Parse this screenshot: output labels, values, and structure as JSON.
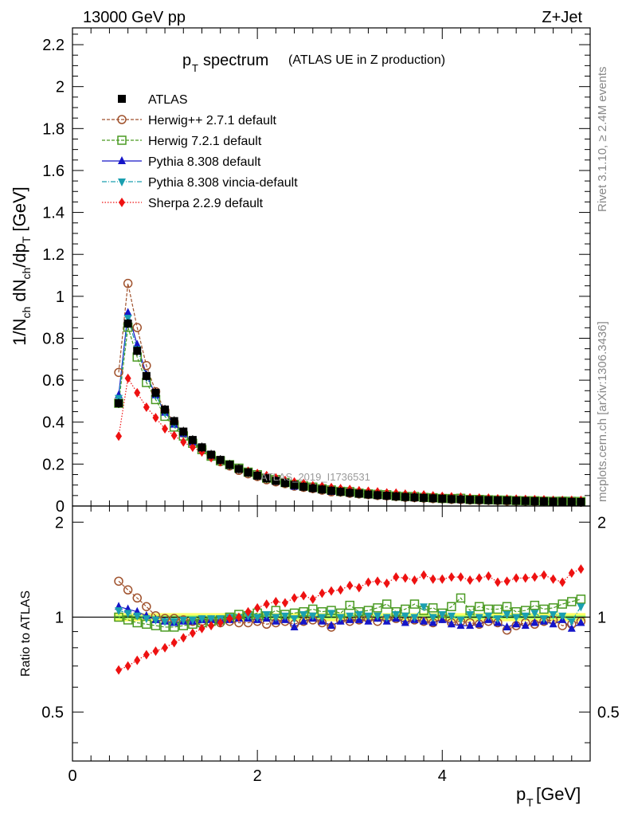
{
  "header": {
    "left": "13000 GeV pp",
    "right": "Z+Jet"
  },
  "side": {
    "rivet": "Rivet 3.1.10, ≥ 2.4M events",
    "mcplots": "mcplots.cern.ch [arXiv:1306.3436]"
  },
  "watermark": "ATLAS_2019_I1736531",
  "chart_data": {
    "type": "scatter",
    "title": {
      "main": "p",
      "sub": "T",
      "tail": " spectrum",
      "note": "(ATLAS UE in Z production)"
    },
    "ylabel": "1/N_ch dN_ch/dp_T [GeV]",
    "ratio_ylabel": "Ratio to ATLAS",
    "xlabel": {
      "main": "p",
      "sub": "T",
      "tail": " [GeV]"
    },
    "xlim": [
      0,
      5.6
    ],
    "ylim": [
      0,
      2.28
    ],
    "ratio_ylim": [
      0.35,
      2.25
    ],
    "ratio_log": true,
    "xticks": [
      "0",
      "2",
      "4"
    ],
    "yticks": [
      "0",
      "0.2",
      "0.4",
      "0.6",
      "0.8",
      "1",
      "1.2",
      "1.4",
      "1.6",
      "1.8",
      "2",
      "2.2"
    ],
    "ratio_yticks": [
      "0.5",
      "1",
      "2"
    ],
    "legend_position": "top-left",
    "x": [
      0.5,
      0.6,
      0.7,
      0.8,
      0.9,
      1.0,
      1.1,
      1.2,
      1.3,
      1.4,
      1.5,
      1.6,
      1.7,
      1.8,
      1.9,
      2.0,
      2.1,
      2.2,
      2.3,
      2.4,
      2.5,
      2.6,
      2.7,
      2.8,
      2.9,
      3.0,
      3.1,
      3.2,
      3.3,
      3.4,
      3.5,
      3.6,
      3.7,
      3.8,
      3.9,
      4.0,
      4.1,
      4.2,
      4.3,
      4.4,
      4.5,
      4.6,
      4.7,
      4.8,
      4.9,
      5.0,
      5.1,
      5.2,
      5.3,
      5.4,
      5.5
    ],
    "data": {
      "name": "ATLAS",
      "values": [
        0.49,
        0.87,
        0.74,
        0.62,
        0.54,
        0.46,
        0.405,
        0.355,
        0.315,
        0.28,
        0.245,
        0.22,
        0.197,
        0.177,
        0.16,
        0.145,
        0.132,
        0.12,
        0.11,
        0.1,
        0.092,
        0.085,
        0.079,
        0.073,
        0.068,
        0.063,
        0.059,
        0.055,
        0.052,
        0.049,
        0.046,
        0.043,
        0.041,
        0.039,
        0.037,
        0.035,
        0.033,
        0.032,
        0.03,
        0.029,
        0.028,
        0.027,
        0.026,
        0.025,
        0.024,
        0.023,
        0.022,
        0.021,
        0.021,
        0.02,
        0.019
      ]
    },
    "series": [
      {
        "name": "Herwig++ 2.7.1 default",
        "color": "#a0522d",
        "marker": "circle-open",
        "dash": "4,2",
        "ratio": [
          1.3,
          1.22,
          1.15,
          1.08,
          1.01,
          0.99,
          0.99,
          0.98,
          0.97,
          0.97,
          0.96,
          0.96,
          0.97,
          0.96,
          0.96,
          0.97,
          0.95,
          0.96,
          0.97,
          0.95,
          0.97,
          0.98,
          0.96,
          0.93,
          0.98,
          0.97,
          0.98,
          0.99,
          0.97,
          0.99,
          0.99,
          0.97,
          0.98,
          0.97,
          0.96,
          0.99,
          0.96,
          0.97,
          0.96,
          0.95,
          0.97,
          0.96,
          0.91,
          0.94,
          0.96,
          0.95,
          0.97,
          0.98,
          0.94,
          0.95,
          0.97
        ]
      },
      {
        "name": "Herwig 7.2.1 default",
        "color": "#4a9a22",
        "marker": "square-open",
        "dash": "4,2",
        "ratio": [
          1.0,
          0.98,
          0.96,
          0.95,
          0.94,
          0.93,
          0.93,
          0.94,
          0.95,
          0.96,
          0.97,
          0.98,
          1.0,
          1.02,
          1.01,
          1.03,
          1.01,
          1.05,
          1.02,
          1.03,
          1.04,
          1.06,
          1.04,
          1.05,
          1.03,
          1.09,
          1.04,
          1.05,
          1.07,
          1.1,
          1.04,
          1.06,
          1.1,
          1.05,
          1.07,
          1.03,
          1.08,
          1.15,
          1.05,
          1.08,
          1.06,
          1.06,
          1.08,
          1.04,
          1.05,
          1.09,
          1.06,
          1.07,
          1.1,
          1.12,
          1.14
        ]
      },
      {
        "name": "Pythia 8.308 default",
        "color": "#1515c8",
        "marker": "triangle-up",
        "dash": "",
        "ratio": [
          1.08,
          1.06,
          1.04,
          1.01,
          0.98,
          0.97,
          0.96,
          0.97,
          0.97,
          0.98,
          0.98,
          0.98,
          0.98,
          0.99,
          0.99,
          0.98,
          0.99,
          0.97,
          0.98,
          0.93,
          0.97,
          0.99,
          0.97,
          0.94,
          0.97,
          0.98,
          0.98,
          0.97,
          0.99,
          0.97,
          0.99,
          0.96,
          0.98,
          0.97,
          0.96,
          0.98,
          0.95,
          0.94,
          0.94,
          0.95,
          0.98,
          0.96,
          0.93,
          0.95,
          0.94,
          0.96,
          0.97,
          0.95,
          0.98,
          0.92,
          0.96
        ]
      },
      {
        "name": "Pythia 8.308 vincia-default",
        "color": "#1a9fb0",
        "marker": "triangle-down",
        "dash": "6,2,1,2",
        "ratio": [
          1.05,
          1.03,
          1.01,
          0.99,
          0.98,
          0.97,
          0.97,
          0.98,
          0.98,
          0.99,
          0.99,
          0.99,
          1.0,
          1.0,
          1.01,
          1.0,
          1.02,
          1.0,
          1.01,
          0.99,
          1.02,
          1.01,
          1.0,
          1.03,
          1.0,
          1.01,
          1.02,
          1.01,
          1.01,
          1.0,
          1.02,
          1.01,
          1.0,
          1.08,
          1.0,
          1.02,
          1.01,
          0.98,
          1.02,
          1.0,
          1.01,
          0.99,
          1.02,
          1.0,
          1.01,
          1.03,
          0.99,
          1.02,
          1.01,
          0.97,
          1.08
        ]
      },
      {
        "name": "Sherpa 2.2.9 default",
        "color": "#ee1111",
        "marker": "diamond",
        "dash": "1.5,2",
        "ratio": [
          0.68,
          0.7,
          0.73,
          0.76,
          0.78,
          0.8,
          0.83,
          0.86,
          0.89,
          0.92,
          0.94,
          0.96,
          0.99,
          1.0,
          1.04,
          1.07,
          1.1,
          1.12,
          1.11,
          1.15,
          1.17,
          1.14,
          1.19,
          1.21,
          1.22,
          1.26,
          1.24,
          1.29,
          1.3,
          1.28,
          1.34,
          1.33,
          1.31,
          1.36,
          1.32,
          1.32,
          1.34,
          1.34,
          1.31,
          1.33,
          1.35,
          1.29,
          1.3,
          1.33,
          1.33,
          1.34,
          1.36,
          1.32,
          1.29,
          1.38,
          1.42
        ]
      }
    ],
    "band": {
      "low": 0.97,
      "high": 1.03,
      "color": "#ffff66",
      "inner_color": "#99ff66"
    }
  }
}
